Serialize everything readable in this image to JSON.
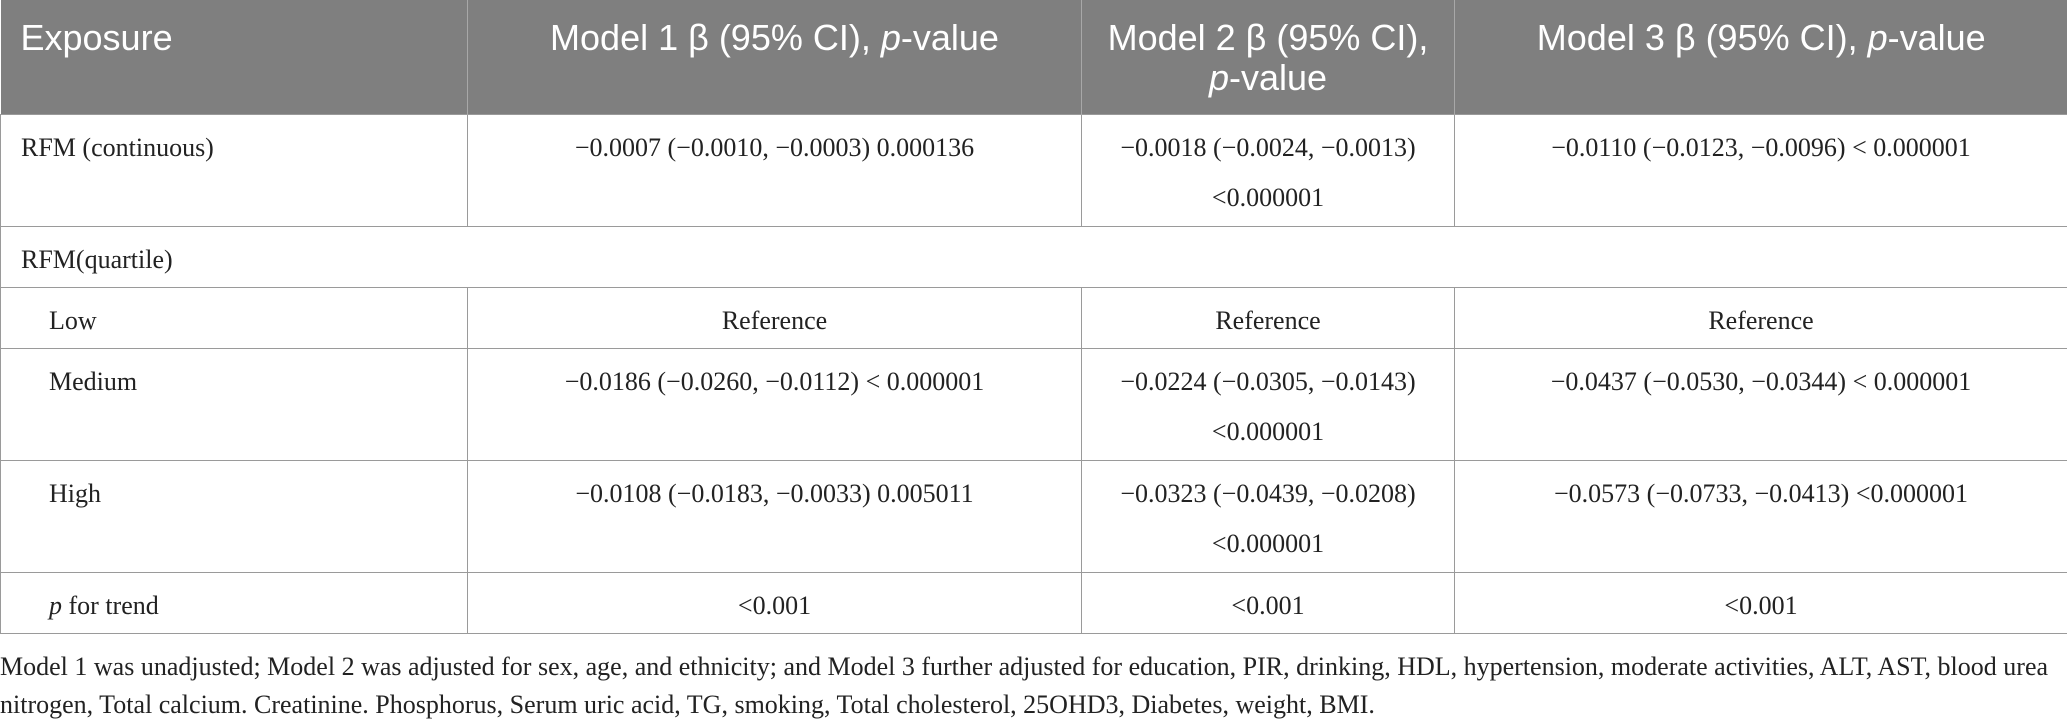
{
  "table": {
    "headers": {
      "exposure": "Exposure",
      "model1_prefix": "Model 1 β (95% CI), ",
      "model1_italic": "p",
      "model1_suffix": "-value",
      "model2_line1": "Model 2 β (95% CI),",
      "model2_italic": "p",
      "model2_suffix": "-value",
      "model3_prefix": "Model 3 β (95% CI), ",
      "model3_italic": "p",
      "model3_suffix": "-value"
    },
    "rows": [
      {
        "label": "RFM (continuous)",
        "model1": "−0.0007 (−0.0010, −0.0003) 0.000136",
        "model2_line1": "−0.0018 (−0.0024, −0.0013)",
        "model2_line2": "<0.000001",
        "model3": "−0.0110 (−0.0123, −0.0096) < 0.000001"
      },
      {
        "label": "RFM(quartile)"
      },
      {
        "label": "Low",
        "model1": "Reference",
        "model2": "Reference",
        "model3": "Reference"
      },
      {
        "label": "Medium",
        "model1": "−0.0186 (−0.0260, −0.0112) < 0.000001",
        "model2_line1": "−0.0224 (−0.0305, −0.0143)",
        "model2_line2": "<0.000001",
        "model3": "−0.0437 (−0.0530, −0.0344) < 0.000001"
      },
      {
        "label": "High",
        "model1": "−0.0108 (−0.0183, −0.0033) 0.005011",
        "model2_line1": "−0.0323 (−0.0439, −0.0208)",
        "model2_line2": "<0.000001",
        "model3": "−0.0573 (−0.0733, −0.0413) <0.000001"
      },
      {
        "label_italic": "p",
        "label_rest": " for trend",
        "model1": "<0.001",
        "model2": "<0.001",
        "model3": "<0.001"
      }
    ]
  },
  "footnote": "Model 1 was unadjusted; Model 2 was adjusted for sex, age, and ethnicity; and Model 3 further adjusted for education, PIR, drinking, HDL, hypertension, moderate activities, ALT, AST, blood urea nitrogen, Total calcium. Creatinine. Phosphorus, Serum uric acid, TG, smoking, Total cholesterol, 25OHD3, Diabetes, weight, BMI."
}
